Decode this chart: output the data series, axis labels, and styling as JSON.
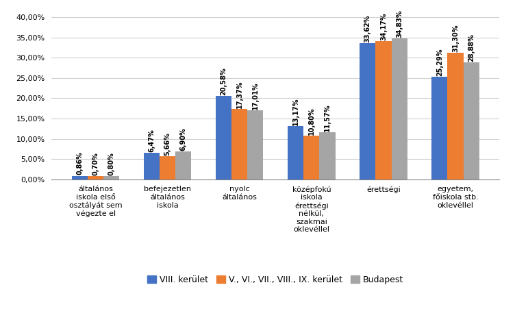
{
  "categories": [
    "általános\niskola első\nosztályát sem\nvégezte el",
    "befejezetlen\náltalános\niskola",
    "nyolc\náltalános",
    "középfokú\niskola\nérettségi\nnélkül,\nszakmai\noklevéllel",
    "érettségi",
    "egyetem,\nfőiskola stb.\noklevéllel"
  ],
  "series": {
    "VIII. kerület": [
      0.0086,
      0.0647,
      0.2058,
      0.1317,
      0.3362,
      0.2529
    ],
    "V., VI., VII., VIII., IX. kerület": [
      0.007,
      0.0566,
      0.1737,
      0.108,
      0.3417,
      0.313
    ],
    "Budapest": [
      0.008,
      0.069,
      0.1701,
      0.1157,
      0.3483,
      0.2888
    ]
  },
  "bar_labels": {
    "VIII. kerület": [
      "0,86%",
      "6,47%",
      "20,58%",
      "13,17%",
      "33,62%",
      "25,29%"
    ],
    "V., VI., VII., VIII., IX. kerület": [
      "0,70%",
      "5,66%",
      "17,37%",
      "10,80%",
      "34,17%",
      "31,30%"
    ],
    "Budapest": [
      "0,80%",
      "6,90%",
      "17,01%",
      "11,57%",
      "34,83%",
      "28,88%"
    ]
  },
  "colors": {
    "VIII. kerület": "#4472C4",
    "V., VI., VII., VIII., IX. kerület": "#ED7D31",
    "Budapest": "#A5A5A5"
  },
  "ylim": [
    0,
    0.42
  ],
  "yticks": [
    0.0,
    0.05,
    0.1,
    0.15,
    0.2,
    0.25,
    0.3,
    0.35,
    0.4
  ],
  "ytick_labels": [
    "0,00%",
    "5,00%",
    "10,00%",
    "15,00%",
    "20,00%",
    "25,00%",
    "30,00%",
    "35,00%",
    "40,00%"
  ],
  "legend_order": [
    "VIII. kerület",
    "V., VI., VII., VIII., IX. kerület",
    "Budapest"
  ],
  "bar_label_fontsize": 7,
  "axis_label_fontsize": 8,
  "legend_fontsize": 9,
  "figure_width": 7.52,
  "figure_height": 4.51,
  "dpi": 100
}
